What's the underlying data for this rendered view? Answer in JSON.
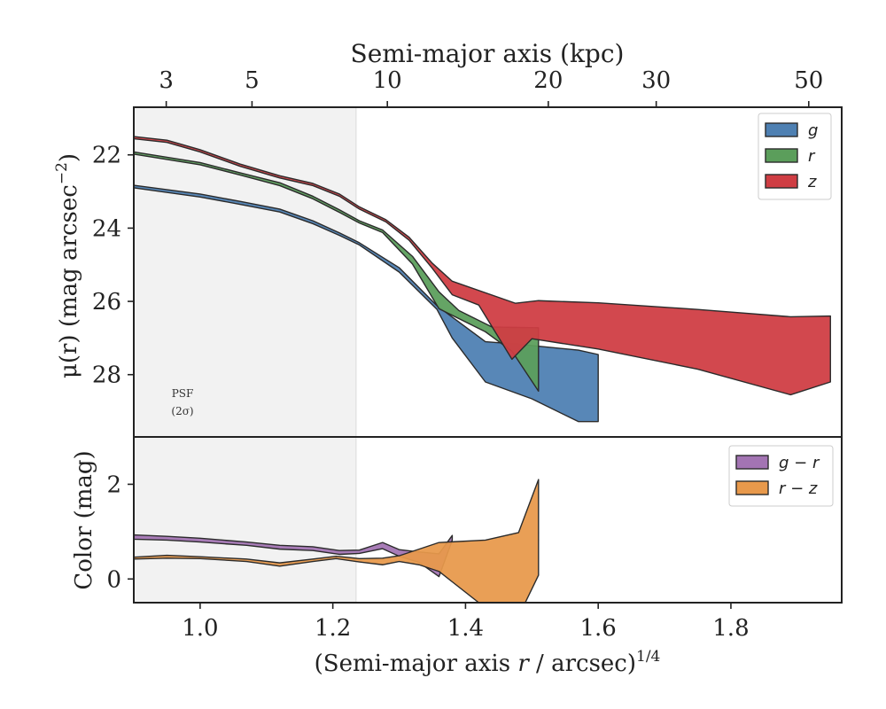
{
  "chart_data": [
    {
      "type": "area",
      "panel": "top",
      "top_axis": {
        "label": "Semi-major axis (kpc)",
        "ticks": [
          {
            "value": 3,
            "label": "3"
          },
          {
            "value": 5,
            "label": "5"
          },
          {
            "value": 10,
            "label": "10"
          },
          {
            "value": 20,
            "label": "20"
          },
          {
            "value": 30,
            "label": "30"
          },
          {
            "value": 50,
            "label": "50"
          }
        ],
        "kpc_per_arcsec": 3.7
      },
      "ylabel_main": "μ(r) (mag arcsec",
      "ylabel_sup": "−2",
      "ylabel_end": ")",
      "ylim": [
        29.7,
        20.7
      ],
      "yticks": [
        22,
        24,
        26,
        28
      ],
      "xlim": [
        0.9,
        1.967
      ],
      "xticks": [
        1.0,
        1.2,
        1.4,
        1.6,
        1.8
      ],
      "psf_region": {
        "x_end": 1.235,
        "label_line1": "PSF",
        "label_line2": "(2σ)"
      },
      "legend": "top-right",
      "grid": false,
      "series": [
        {
          "name": "g",
          "color": "#4e80b2",
          "upper": [
            [
              0.9,
              22.83
            ],
            [
              1.0,
              23.07
            ],
            [
              1.06,
              23.27
            ],
            [
              1.12,
              23.48
            ],
            [
              1.17,
              23.8
            ],
            [
              1.21,
              24.13
            ],
            [
              1.24,
              24.4
            ],
            [
              1.3,
              25.08
            ],
            [
              1.357,
              26.12
            ],
            [
              1.43,
              27.1
            ],
            [
              1.48,
              27.17
            ],
            [
              1.57,
              27.33
            ],
            [
              1.6,
              27.45
            ]
          ],
          "lower": [
            [
              0.9,
              22.9
            ],
            [
              1.0,
              23.15
            ],
            [
              1.06,
              23.35
            ],
            [
              1.12,
              23.56
            ],
            [
              1.17,
              23.88
            ],
            [
              1.21,
              24.2
            ],
            [
              1.24,
              24.46
            ],
            [
              1.3,
              25.2
            ],
            [
              1.357,
              26.22
            ],
            [
              1.38,
              27.0
            ],
            [
              1.43,
              28.2
            ],
            [
              1.5,
              28.66
            ],
            [
              1.57,
              29.28
            ],
            [
              1.6,
              29.28
            ]
          ]
        },
        {
          "name": "r",
          "color": "#5b9e5b",
          "upper": [
            [
              0.9,
              21.92
            ],
            [
              1.0,
              22.21
            ],
            [
              1.06,
              22.49
            ],
            [
              1.12,
              22.76
            ],
            [
              1.17,
              23.13
            ],
            [
              1.21,
              23.5
            ],
            [
              1.24,
              23.8
            ],
            [
              1.275,
              24.05
            ],
            [
              1.32,
              24.77
            ],
            [
              1.36,
              25.74
            ],
            [
              1.39,
              26.25
            ],
            [
              1.44,
              26.7
            ],
            [
              1.51,
              26.72
            ]
          ],
          "lower": [
            [
              0.9,
              21.98
            ],
            [
              1.0,
              22.27
            ],
            [
              1.06,
              22.55
            ],
            [
              1.12,
              22.84
            ],
            [
              1.17,
              23.2
            ],
            [
              1.21,
              23.57
            ],
            [
              1.24,
              23.86
            ],
            [
              1.275,
              24.12
            ],
            [
              1.32,
              24.98
            ],
            [
              1.36,
              26.2
            ],
            [
              1.43,
              26.83
            ],
            [
              1.47,
              27.36
            ],
            [
              1.51,
              28.45
            ]
          ]
        },
        {
          "name": "z",
          "color": "#cf3d43",
          "upper": [
            [
              0.9,
              21.5
            ],
            [
              0.95,
              21.6
            ],
            [
              1.0,
              21.86
            ],
            [
              1.06,
              22.25
            ],
            [
              1.12,
              22.57
            ],
            [
              1.17,
              22.78
            ],
            [
              1.21,
              23.07
            ],
            [
              1.24,
              23.42
            ],
            [
              1.28,
              23.77
            ],
            [
              1.315,
              24.25
            ],
            [
              1.35,
              24.96
            ],
            [
              1.38,
              25.45
            ],
            [
              1.475,
              26.05
            ],
            [
              1.51,
              25.98
            ],
            [
              1.6,
              26.04
            ],
            [
              1.75,
              26.22
            ],
            [
              1.89,
              26.42
            ],
            [
              1.95,
              26.4
            ]
          ],
          "lower": [
            [
              0.9,
              21.56
            ],
            [
              0.95,
              21.66
            ],
            [
              1.0,
              21.92
            ],
            [
              1.06,
              22.31
            ],
            [
              1.12,
              22.63
            ],
            [
              1.17,
              22.84
            ],
            [
              1.21,
              23.13
            ],
            [
              1.24,
              23.48
            ],
            [
              1.28,
              23.83
            ],
            [
              1.315,
              24.33
            ],
            [
              1.35,
              25.1
            ],
            [
              1.38,
              25.82
            ],
            [
              1.42,
              26.1
            ],
            [
              1.47,
              27.58
            ],
            [
              1.5,
              27.02
            ],
            [
              1.6,
              27.3
            ],
            [
              1.75,
              27.85
            ],
            [
              1.89,
              28.55
            ],
            [
              1.95,
              28.2
            ]
          ]
        }
      ]
    },
    {
      "type": "area",
      "panel": "bottom",
      "ylabel": "Color (mag)",
      "xlabel_main": "(Semi-major axis ",
      "xlabel_var": "r",
      "xlabel_rest": " / arcsec)",
      "xlabel_sup": "1/4",
      "ylim": [
        -0.5,
        3.0
      ],
      "yticks": [
        0,
        2
      ],
      "xlim": [
        0.9,
        1.967
      ],
      "xticks": [
        1.0,
        1.2,
        1.4,
        1.6,
        1.8
      ],
      "xticklabels": [
        "1.0",
        "1.2",
        "1.4",
        "1.6",
        "1.8"
      ],
      "legend": "top-right",
      "grid": false,
      "series": [
        {
          "name": "g − r",
          "color": "#a374b3",
          "upper": [
            [
              0.9,
              0.93
            ],
            [
              0.95,
              0.9
            ],
            [
              1.0,
              0.86
            ],
            [
              1.07,
              0.78
            ],
            [
              1.12,
              0.71
            ],
            [
              1.17,
              0.68
            ],
            [
              1.21,
              0.6
            ],
            [
              1.24,
              0.61
            ],
            [
              1.275,
              0.77
            ],
            [
              1.3,
              0.62
            ],
            [
              1.33,
              0.57
            ],
            [
              1.36,
              0.53
            ],
            [
              1.38,
              0.92
            ]
          ],
          "lower": [
            [
              0.9,
              0.84
            ],
            [
              0.95,
              0.82
            ],
            [
              1.0,
              0.78
            ],
            [
              1.07,
              0.71
            ],
            [
              1.12,
              0.63
            ],
            [
              1.17,
              0.6
            ],
            [
              1.21,
              0.52
            ],
            [
              1.24,
              0.54
            ],
            [
              1.275,
              0.64
            ],
            [
              1.3,
              0.48
            ],
            [
              1.33,
              0.35
            ],
            [
              1.36,
              0.05
            ],
            [
              1.38,
              0.82
            ]
          ]
        },
        {
          "name": "r − z",
          "color": "#e8994b",
          "upper": [
            [
              0.9,
              0.46
            ],
            [
              0.95,
              0.5
            ],
            [
              1.0,
              0.47
            ],
            [
              1.07,
              0.42
            ],
            [
              1.12,
              0.34
            ],
            [
              1.17,
              0.42
            ],
            [
              1.205,
              0.48
            ],
            [
              1.24,
              0.43
            ],
            [
              1.275,
              0.44
            ],
            [
              1.3,
              0.49
            ],
            [
              1.36,
              0.77
            ],
            [
              1.43,
              0.82
            ],
            [
              1.48,
              0.98
            ],
            [
              1.51,
              2.1
            ]
          ],
          "lower": [
            [
              0.9,
              0.42
            ],
            [
              0.95,
              0.44
            ],
            [
              1.0,
              0.43
            ],
            [
              1.07,
              0.37
            ],
            [
              1.12,
              0.27
            ],
            [
              1.17,
              0.37
            ],
            [
              1.205,
              0.43
            ],
            [
              1.24,
              0.36
            ],
            [
              1.275,
              0.3
            ],
            [
              1.3,
              0.37
            ],
            [
              1.33,
              0.3
            ],
            [
              1.36,
              0.16
            ],
            [
              1.38,
              -0.06
            ],
            [
              1.42,
              -0.5
            ],
            [
              1.49,
              -0.5
            ],
            [
              1.51,
              0.08
            ]
          ]
        }
      ]
    }
  ]
}
